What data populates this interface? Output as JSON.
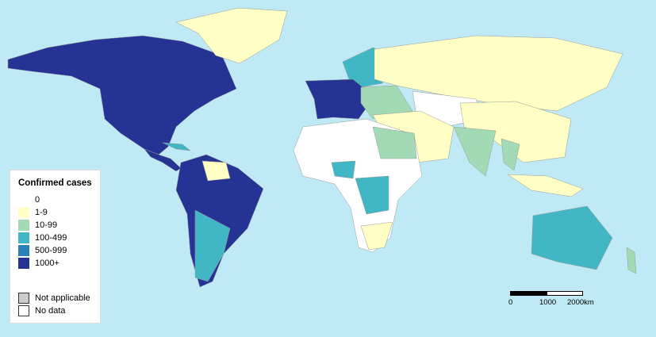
{
  "legend": {
    "title": "Confirmed cases",
    "items": [
      {
        "label": "0",
        "color": "#ffffff"
      },
      {
        "label": "1-9",
        "color": "#ffffc6"
      },
      {
        "label": "10-99",
        "color": "#a1dab4"
      },
      {
        "label": "100-499",
        "color": "#41b6c4"
      },
      {
        "label": "500-999",
        "color": "#2c7fb8"
      },
      {
        "label": "1000+",
        "color": "#253494"
      }
    ],
    "extra": [
      {
        "label": "Not applicable",
        "color": "#cccccc"
      },
      {
        "label": "No data",
        "color": "#ffffff"
      }
    ]
  },
  "scale_bar": {
    "labels": [
      "0",
      "1000",
      "2000km"
    ]
  },
  "colors": {
    "ocean": "#bfeaf5",
    "border": "#999999"
  }
}
